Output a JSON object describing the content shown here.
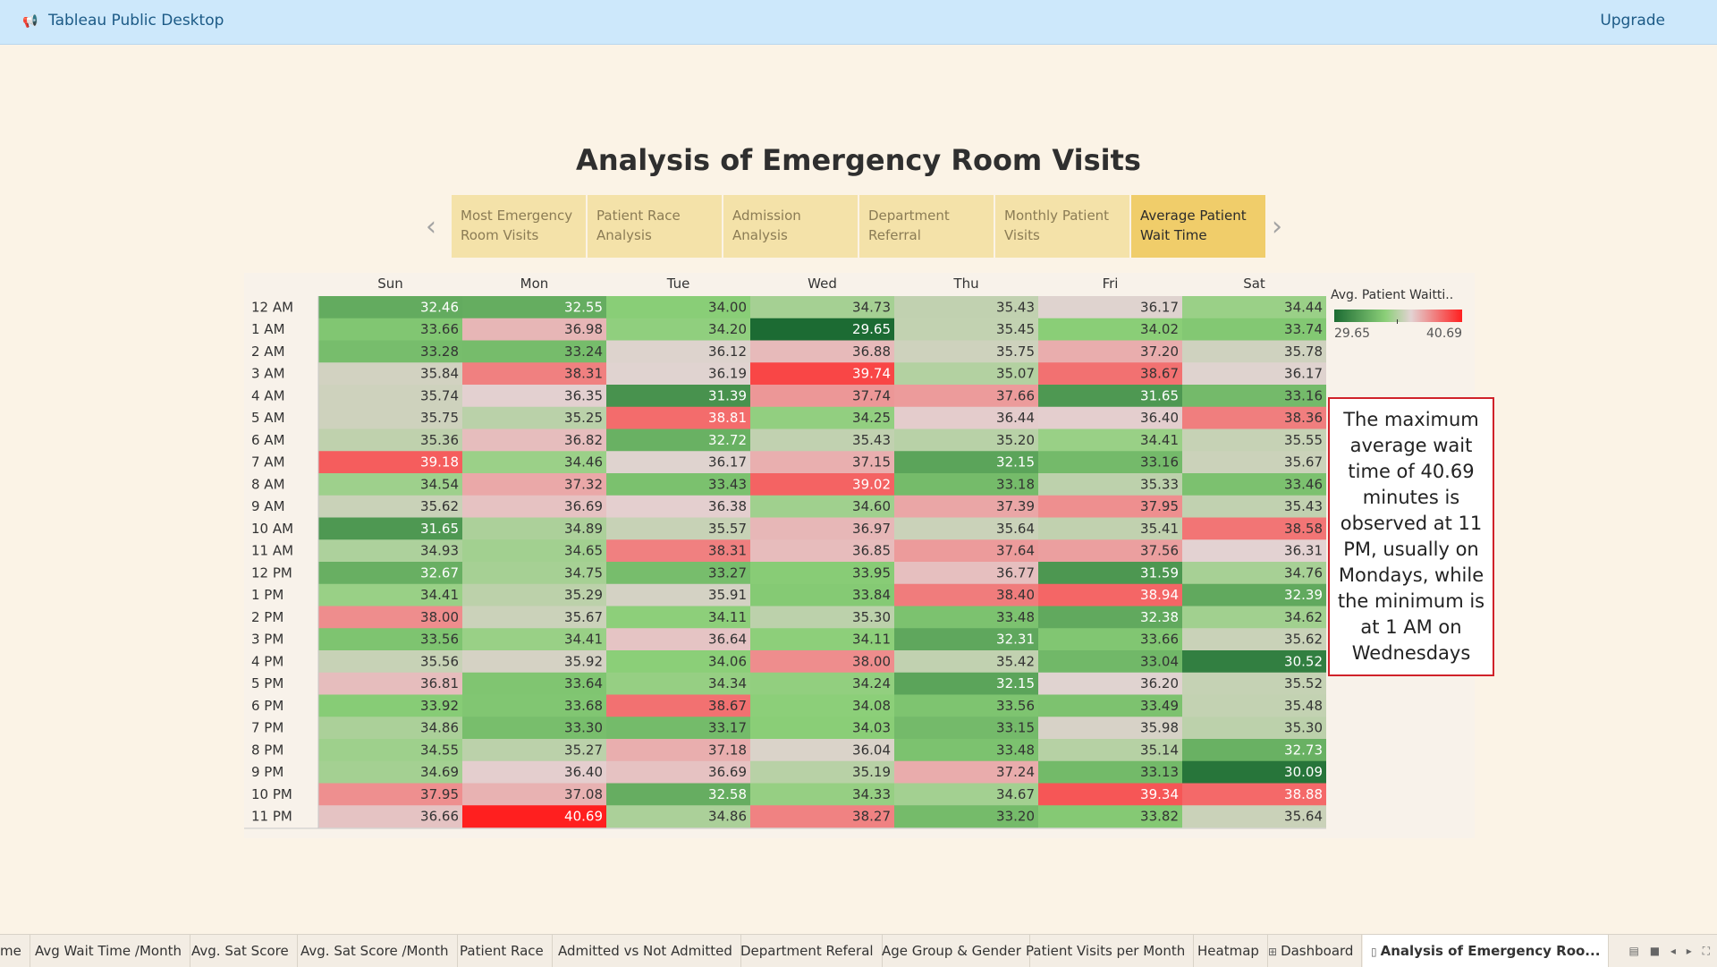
{
  "app": {
    "title": "Tableau Public Desktop",
    "icon": "megaphone-icon",
    "upgrade_label": "Upgrade"
  },
  "story": {
    "title": "Analysis of Emergency Room Visits",
    "prev_icon": "chevron-left-icon",
    "next_icon": "chevron-right-icon",
    "tabs": [
      {
        "line1": "Most Emergency",
        "line2": "Room Visits"
      },
      {
        "line1": "Patient Race",
        "line2": "Analysis"
      },
      {
        "line1": "Admission",
        "line2": "Analysis"
      },
      {
        "line1": "Department",
        "line2": "Referral"
      },
      {
        "line1": "Monthly Patient",
        "line2": "Visits"
      },
      {
        "line1": "Average Patient",
        "line2": "Wait Time",
        "active": true
      }
    ]
  },
  "legend": {
    "title": "Avg. Patient Waitti..",
    "min_label": "29.65",
    "max_label": "40.69"
  },
  "annotation": {
    "text": "The maximum average wait time of 40.69 minutes is observed at 11 PM, usually on Mondays, while the minimum is at 1 AM on Wednesdays"
  },
  "chart_data": {
    "type": "heatmap",
    "columns": [
      "Sun",
      "Mon",
      "Tue",
      "Wed",
      "Thu",
      "Fri",
      "Sat"
    ],
    "rows": [
      "12 AM",
      "1 AM",
      "2 AM",
      "3 AM",
      "4 AM",
      "5 AM",
      "6 AM",
      "7 AM",
      "8 AM",
      "9 AM",
      "10 AM",
      "11 AM",
      "12 PM",
      "1 PM",
      "2 PM",
      "3 PM",
      "4 PM",
      "5 PM",
      "6 PM",
      "7 PM",
      "8 PM",
      "9 PM",
      "10 PM",
      "11 PM"
    ],
    "values": [
      [
        32.46,
        32.55,
        34.0,
        34.73,
        35.43,
        36.17,
        34.44
      ],
      [
        33.66,
        36.98,
        34.2,
        29.65,
        35.45,
        34.02,
        33.74
      ],
      [
        33.28,
        33.24,
        36.12,
        36.88,
        35.75,
        37.2,
        35.78
      ],
      [
        35.84,
        38.31,
        36.19,
        39.74,
        35.07,
        38.67,
        36.17
      ],
      [
        35.74,
        36.35,
        31.39,
        37.74,
        37.66,
        31.65,
        33.16
      ],
      [
        35.75,
        35.25,
        38.81,
        34.25,
        36.44,
        36.4,
        38.36
      ],
      [
        35.36,
        36.82,
        32.72,
        35.43,
        35.2,
        34.41,
        35.55
      ],
      [
        39.18,
        34.46,
        36.17,
        37.15,
        32.15,
        33.16,
        35.67
      ],
      [
        34.54,
        37.32,
        33.43,
        39.02,
        33.18,
        35.33,
        33.46
      ],
      [
        35.62,
        36.69,
        36.38,
        34.6,
        37.39,
        37.95,
        35.43
      ],
      [
        31.65,
        34.89,
        35.57,
        36.97,
        35.64,
        35.41,
        38.58
      ],
      [
        34.93,
        34.65,
        38.31,
        36.85,
        37.64,
        37.56,
        36.31
      ],
      [
        32.67,
        34.75,
        33.27,
        33.95,
        36.77,
        31.59,
        34.76
      ],
      [
        34.41,
        35.29,
        35.91,
        33.84,
        38.4,
        38.94,
        32.39
      ],
      [
        38.0,
        35.67,
        34.11,
        35.3,
        33.48,
        32.38,
        34.62
      ],
      [
        33.56,
        34.41,
        36.64,
        34.11,
        32.31,
        33.66,
        35.62
      ],
      [
        35.56,
        35.92,
        34.06,
        38.0,
        35.42,
        33.04,
        30.52
      ],
      [
        36.81,
        33.64,
        34.34,
        34.24,
        32.15,
        36.2,
        35.52
      ],
      [
        33.92,
        33.68,
        38.67,
        34.08,
        33.56,
        33.49,
        35.48
      ],
      [
        34.86,
        33.3,
        33.17,
        34.03,
        33.15,
        35.98,
        35.3
      ],
      [
        34.55,
        35.27,
        37.18,
        36.04,
        33.48,
        35.14,
        32.73
      ],
      [
        34.69,
        36.4,
        36.69,
        35.19,
        37.24,
        33.13,
        30.09
      ],
      [
        37.95,
        37.08,
        32.58,
        34.33,
        34.67,
        39.34,
        38.88
      ],
      [
        36.66,
        40.69,
        34.86,
        38.27,
        33.2,
        33.82,
        35.64
      ]
    ],
    "color_range": [
      29.65,
      40.69
    ],
    "colors": {
      "low": "#1c6b33",
      "mid_low": "#8bcf78",
      "mid": "#e3d3d3",
      "high": "#ff1f1f"
    }
  },
  "sheet_tabs": [
    {
      "label": "me"
    },
    {
      "label": "Avg Wait Time /Month"
    },
    {
      "label": "Avg. Sat Score"
    },
    {
      "label": "Avg. Sat Score /Month"
    },
    {
      "label": "Patient Race"
    },
    {
      "label": "Admitted vs Not Admitted"
    },
    {
      "label": "Department Referal"
    },
    {
      "label": "Age Group & Gender"
    },
    {
      "label": "Patient Visits per Month"
    },
    {
      "label": "Heatmap"
    },
    {
      "label": "Dashboard",
      "icon": "dashboard-icon"
    },
    {
      "label": "Analysis of Emergency Roo...",
      "icon": "story-icon",
      "active": true
    }
  ]
}
